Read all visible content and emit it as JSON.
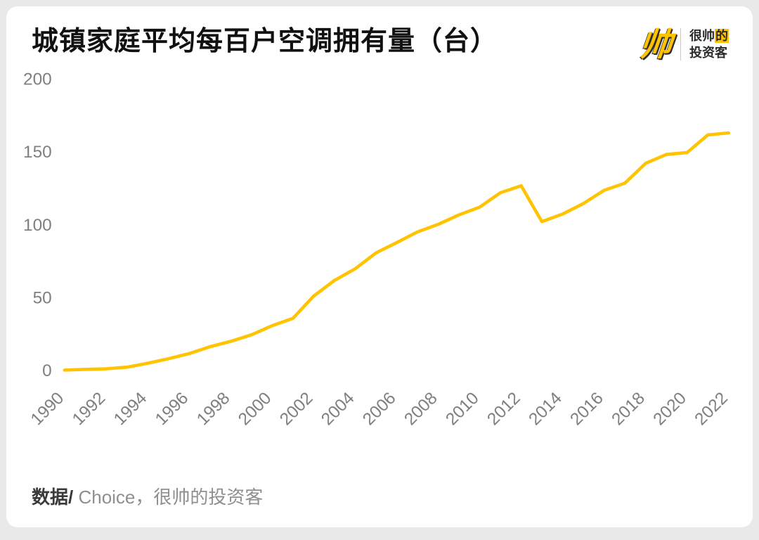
{
  "page": {
    "title": "城镇家庭平均每百户空调拥有量（台）",
    "source_prefix": "数据/",
    "source_text": " Choice，很帅的投资客"
  },
  "brand": {
    "logo_glyph": "帅",
    "name_part1": "很帅",
    "name_highlight": "的",
    "name_line2": "投资客"
  },
  "chart_data": {
    "type": "line",
    "title": "城镇家庭平均每百户空调拥有量（台）",
    "xlabel": "",
    "ylabel": "",
    "x": [
      1990,
      1991,
      1992,
      1993,
      1994,
      1995,
      1996,
      1997,
      1998,
      1999,
      2000,
      2001,
      2002,
      2003,
      2004,
      2005,
      2006,
      2007,
      2008,
      2009,
      2010,
      2011,
      2012,
      2013,
      2014,
      2015,
      2016,
      2017,
      2018,
      2019,
      2020,
      2021,
      2022
    ],
    "series": [
      {
        "name": "城镇家庭平均每百户空调拥有量",
        "values": [
          0.3,
          0.8,
          1.2,
          2.3,
          5.0,
          8.1,
          11.6,
          16.3,
          20.0,
          24.5,
          30.8,
          35.8,
          51.1,
          61.8,
          69.8,
          80.7,
          87.8,
          95.1,
          100.3,
          106.8,
          112.1,
          122.0,
          126.8,
          102.2,
          107.4,
          114.6,
          123.7,
          128.6,
          142.2,
          148.3,
          149.6,
          161.7,
          163.1
        ]
      }
    ],
    "ylim": [
      0,
      200
    ],
    "yticks": [
      0,
      50,
      100,
      150,
      200
    ],
    "xticks": [
      1990,
      1992,
      1994,
      1996,
      1998,
      2000,
      2002,
      2004,
      2006,
      2008,
      2010,
      2012,
      2014,
      2016,
      2018,
      2020,
      2022
    ],
    "grid": false,
    "legend_position": "none",
    "line_color": "#FFC300",
    "tick_color": "#7f7f7f"
  }
}
